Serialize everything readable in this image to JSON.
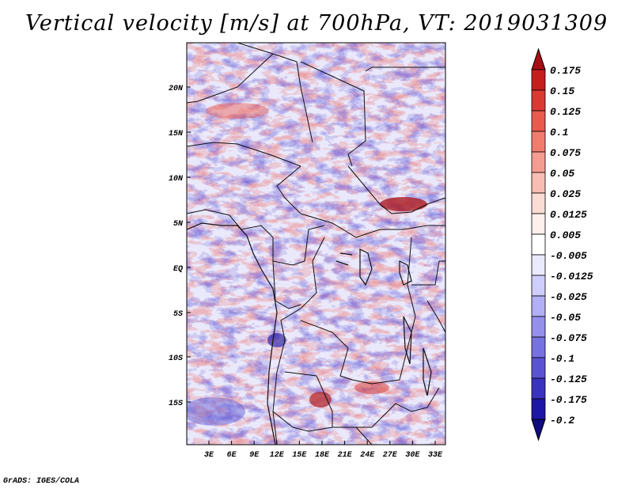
{
  "title": "Vertical velocity [m/s] at 700hPa, VT: 2019031309",
  "credit": "GrADS: IGES/COLA",
  "map": {
    "lat_labels": [
      "20N",
      "15N",
      "10N",
      "5N",
      "EQ",
      "5S",
      "10S",
      "15S"
    ],
    "lon_labels": [
      "3E",
      "6E",
      "9E",
      "12E",
      "15E",
      "18E",
      "21E",
      "24E",
      "27E",
      "30E",
      "33E"
    ]
  },
  "colorbar": {
    "levels": [
      "0.175",
      "0.15",
      "0.125",
      "0.1",
      "0.075",
      "0.05",
      "0.025",
      "0.0125",
      "0.005",
      "-0.005",
      "-0.0125",
      "-0.025",
      "-0.05",
      "-0.075",
      "-0.1",
      "-0.125",
      "-0.175",
      "-0.2"
    ],
    "colors": [
      "#a50f15",
      "#c61d1d",
      "#db3a32",
      "#ea5a4d",
      "#f17c6e",
      "#f59c90",
      "#f8bdb2",
      "#fbdcd4",
      "#fdf0ec",
      "#ffffff",
      "#eaeaff",
      "#cfcdfb",
      "#b2aff4",
      "#9590ec",
      "#7772e1",
      "#5a54d3",
      "#3a33c0",
      "#1e16a6",
      "#100b7e"
    ]
  }
}
